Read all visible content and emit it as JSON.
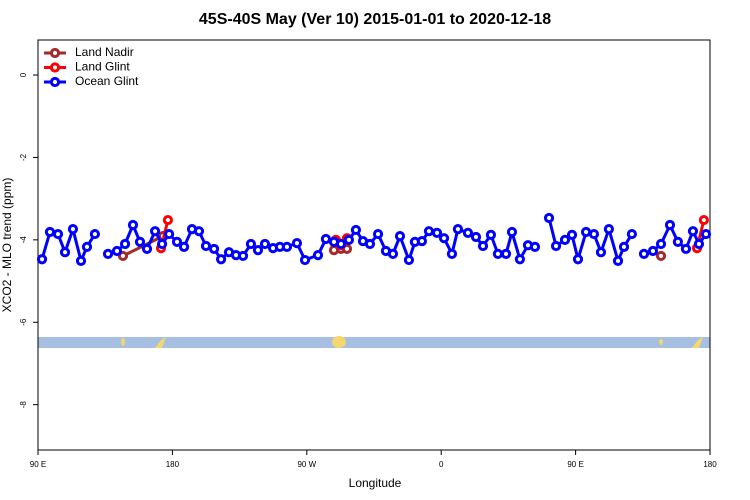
{
  "chart_data": {
    "type": "line",
    "title": "45S-40S May (Ver 10)   2015-01-01 to 2020-12-18",
    "x_label": "Longitude",
    "y_label": "XCO2 - MLO trend (ppm)",
    "xlim": [
      90,
      540
    ],
    "xticks": [
      {
        "value": 90,
        "label": "90 E"
      },
      {
        "value": 180,
        "label": "180"
      },
      {
        "value": 270,
        "label": "90 W"
      },
      {
        "value": 360,
        "label": "0"
      },
      {
        "value": 450,
        "label": "90 E"
      },
      {
        "value": 540,
        "label": "180"
      }
    ],
    "ylim": [
      -9.1,
      0.85
    ],
    "yticks": [
      0,
      -2,
      -4,
      -6,
      -8
    ],
    "legend": "top-left",
    "series": [
      {
        "name": "Land Nadir",
        "color": "#a52a2a",
        "x": [
          146.9,
          173.7,
          null,
          288.2,
          292.9,
          296.9,
          null,
          507.2
        ],
        "values": [
          -4.39,
          -3.91,
          null,
          -4.25,
          -4.22,
          -4.22,
          null,
          -4.39
        ]
      },
      {
        "name": "Land Glint",
        "color": "#ff0000",
        "x": [
          172.4,
          177.0,
          null,
          289.5,
          292.9,
          296.9,
          null,
          531.3,
          535.9
        ],
        "values": [
          -4.2,
          -3.52,
          null,
          -4.0,
          -4.13,
          -3.96,
          null,
          -4.2,
          -3.52
        ]
      },
      {
        "name": "Ocean Glint",
        "color": "#0000ff",
        "x": [
          92.7,
          98.0,
          103.4,
          108.1,
          113.4,
          118.8,
          122.8,
          128.1,
          null,
          136.9,
          142.9,
          148.3,
          153.6,
          158.3,
          163.0,
          168.4,
          173.1,
          177.8,
          183.1,
          187.8,
          193.1,
          197.8,
          202.5,
          207.9,
          212.6,
          217.9,
          222.6,
          227.3,
          232.6,
          237.3,
          242.0,
          247.4,
          252.0,
          256.7,
          263.4,
          268.8,
          277.5,
          282.8,
          288.2,
          292.9,
          298.2,
          302.9,
          307.6,
          312.3,
          317.7,
          323.0,
          327.7,
          332.4,
          338.4,
          342.4,
          347.1,
          351.8,
          357.2,
          361.9,
          367.2,
          371.2,
          377.9,
          383.3,
          388.0,
          393.3,
          398.0,
          403.4,
          407.4,
          412.7,
          418.1,
          422.8,
          null,
          432.2,
          436.9,
          442.9,
          447.6,
          451.6,
          457.0,
          462.3,
          467.0,
          472.3,
          478.4,
          482.4,
          487.7,
          null,
          495.8,
          501.8,
          507.2,
          513.2,
          518.5,
          523.9,
          528.6,
          532.6,
          537.3
        ],
        "values": [
          -4.47,
          -3.81,
          -3.86,
          -4.3,
          -3.74,
          -4.51,
          -4.17,
          -3.86,
          null,
          -4.34,
          -4.27,
          -4.1,
          -3.64,
          -4.05,
          -4.22,
          -3.79,
          -4.1,
          -3.86,
          -4.05,
          -4.17,
          -3.74,
          -3.79,
          -4.15,
          -4.22,
          -4.47,
          -4.3,
          -4.37,
          -4.39,
          -4.1,
          -4.25,
          -4.1,
          -4.2,
          -4.17,
          -4.17,
          -4.08,
          -4.49,
          -4.37,
          -3.98,
          -4.05,
          -4.1,
          -4.0,
          -3.76,
          -4.03,
          -4.1,
          -3.86,
          -4.27,
          -4.34,
          -3.91,
          -4.49,
          -4.05,
          -4.03,
          -3.79,
          -3.83,
          -3.96,
          -4.34,
          -3.74,
          -3.83,
          -3.93,
          -4.15,
          -3.88,
          -4.34,
          -4.34,
          -3.81,
          -4.47,
          -4.13,
          -4.17,
          null,
          -3.47,
          -4.15,
          -4.0,
          -3.88,
          -4.47,
          -3.81,
          -3.86,
          -4.3,
          -3.74,
          -4.51,
          -4.17,
          -3.86,
          null,
          -4.34,
          -4.27,
          -4.1,
          -3.64,
          -4.05,
          -4.22,
          -3.79,
          -4.1,
          -3.86
        ]
      }
    ]
  }
}
